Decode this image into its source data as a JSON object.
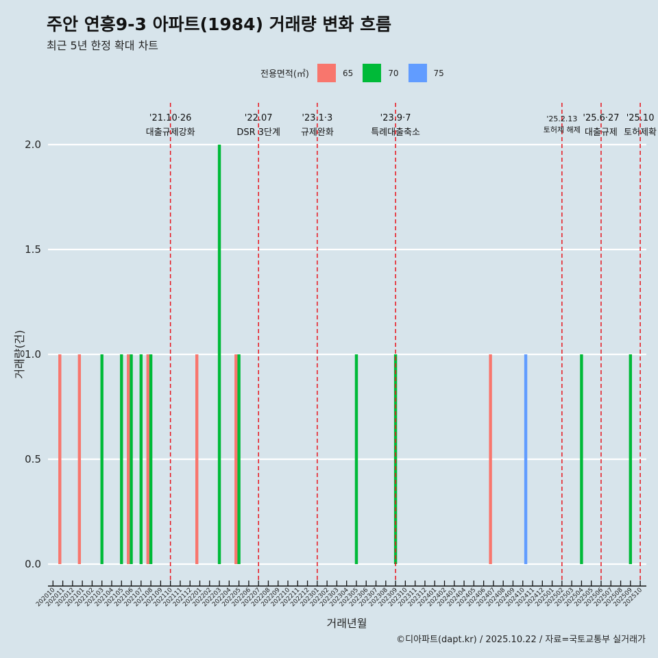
{
  "title": "주안 연흥9-3 아파트(1984) 거래량 변화 흐름",
  "subtitle": "최근 5년 한정 확대 차트",
  "caption": "©디아파트(dapt.kr) / 2025.10.22 / 자료=국토교통부 실거래가",
  "legend": {
    "title": "전용면적(㎡)",
    "items": [
      {
        "label": "65",
        "color": "#f8766d"
      },
      {
        "label": "70",
        "color": "#00ba38"
      },
      {
        "label": "75",
        "color": "#619cff"
      }
    ]
  },
  "chart_data": {
    "type": "bar",
    "title": "주안 연흥9-3 아파트(1984) 거래량 변화 흐름",
    "xlabel": "거래년월",
    "ylabel": "거래량(건)",
    "ylim": [
      0,
      2
    ],
    "yticks": [
      "0.0",
      "0.5",
      "1.0",
      "1.5",
      "2.0"
    ],
    "grid": true,
    "legend_position": "top",
    "categories": [
      "202010",
      "202011",
      "202012",
      "202101",
      "202102",
      "202103",
      "202104",
      "202105",
      "202106",
      "202107",
      "202108",
      "202109",
      "202110",
      "202111",
      "202112",
      "202201",
      "202202",
      "202203",
      "202204",
      "202205",
      "202206",
      "202207",
      "202208",
      "202209",
      "202210",
      "202211",
      "202212",
      "202301",
      "202302",
      "202303",
      "202304",
      "202305",
      "202306",
      "202307",
      "202308",
      "202309",
      "202310",
      "202311",
      "202312",
      "202401",
      "202402",
      "202403",
      "202404",
      "202405",
      "202406",
      "202407",
      "202408",
      "202409",
      "202410",
      "202411",
      "202412",
      "202501",
      "202502",
      "202503",
      "202504",
      "202505",
      "202506",
      "202507",
      "202508",
      "202509",
      "202510"
    ],
    "series": [
      {
        "name": "65",
        "color": "#f8766d",
        "points": [
          [
            "202011",
            1
          ],
          [
            "202101",
            1
          ],
          [
            "202106",
            1
          ],
          [
            "202108",
            1
          ],
          [
            "202201",
            1
          ],
          [
            "202205",
            1
          ],
          [
            "202407",
            1
          ]
        ]
      },
      {
        "name": "70",
        "color": "#00ba38",
        "points": [
          [
            "202103",
            1
          ],
          [
            "202105",
            1
          ],
          [
            "202106",
            1
          ],
          [
            "202107",
            1
          ],
          [
            "202108",
            1
          ],
          [
            "202203",
            2
          ],
          [
            "202205",
            1
          ],
          [
            "202305",
            1
          ],
          [
            "202309",
            1
          ],
          [
            "202504",
            1
          ],
          [
            "202509",
            1
          ]
        ]
      },
      {
        "name": "75",
        "color": "#619cff",
        "points": [
          [
            "202410",
            1
          ]
        ]
      }
    ],
    "annotations": [
      {
        "month": "202110",
        "date": "'21.10·26",
        "label": "대출규제강화"
      },
      {
        "month": "202207",
        "date": "'22.07",
        "label": "DSR 3단계"
      },
      {
        "month": "202301",
        "date": "'23.1·3",
        "label": "규제완화"
      },
      {
        "month": "202309",
        "date": "'23.9·7",
        "label": "특례대출축소"
      },
      {
        "month": "202502",
        "date": "'25.2.13",
        "label": "토허제 해제",
        "small": true
      },
      {
        "month": "202506",
        "date": "'25.6·27",
        "label": "대출규제"
      },
      {
        "month": "202510",
        "date": "'25.10",
        "label": "토허제확"
      }
    ]
  }
}
